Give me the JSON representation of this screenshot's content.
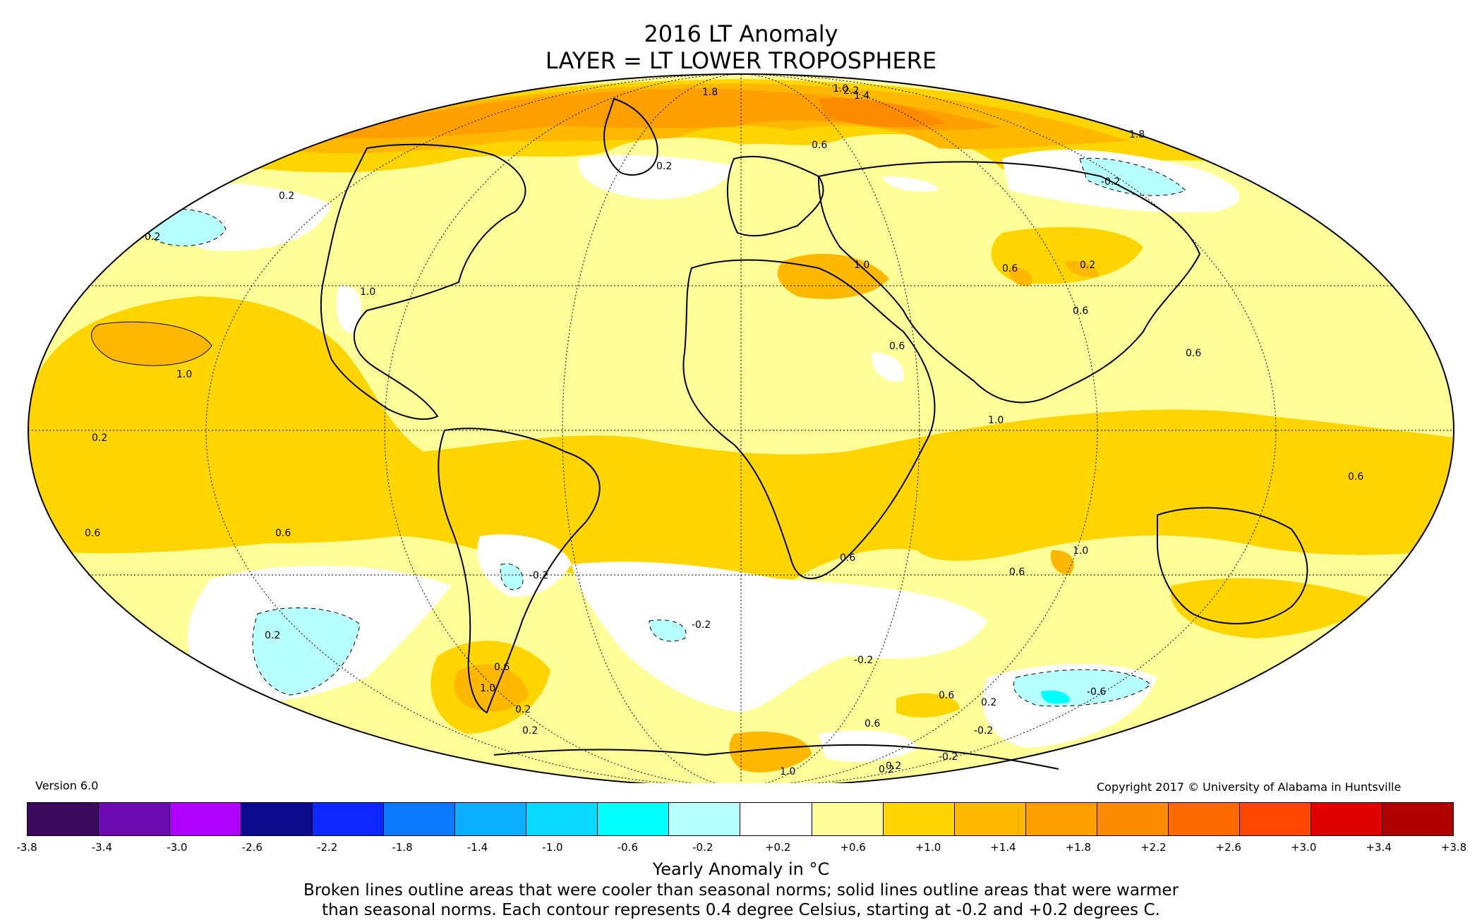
{
  "title_line1": "2016 LT Anomaly",
  "title_line2": "LAYER = LT LOWER TROPOSPHERE",
  "version": "Version 6.0",
  "copyright": "Copyright 2017 © University of Alabama in Huntsville",
  "colorbar": {
    "label": "Yearly Anomaly in °C",
    "ticks": [
      "-3.8",
      "-3.4",
      "-3.0",
      "-2.6",
      "-2.2",
      "-1.8",
      "-1.4",
      "-1.0",
      "-0.6",
      "-0.2",
      "+0.2",
      "+0.6",
      "+1.0",
      "+1.4",
      "+1.8",
      "+2.2",
      "+2.6",
      "+3.0",
      "+3.4",
      "+3.8"
    ],
    "colors": [
      "#3a0a5e",
      "#6a0ab0",
      "#b000ff",
      "#0a0a8c",
      "#0a28ff",
      "#0a78ff",
      "#0ab0ff",
      "#0ad8ff",
      "#00ffff",
      "#b8ffff",
      "#ffffff",
      "#ffff99",
      "#ffd500",
      "#ffb800",
      "#ffa000",
      "#ff8c00",
      "#ff6a00",
      "#ff4800",
      "#e00000",
      "#b00000"
    ]
  },
  "contour_labels": [
    "0.2",
    "-0.2",
    "0.6",
    "1.0",
    "1.4",
    "1.8",
    "2.2",
    "0.2",
    "-0.2",
    "1.8",
    "1.0",
    "1.0",
    "0.6",
    "0.2",
    "0.6",
    "1.0",
    "0.6",
    "0.6",
    "0.6",
    "0.2",
    "-0.2",
    "-0.2",
    "0.2",
    "-0.2",
    "0.6",
    "1.0",
    "1.0",
    "0.6",
    "0.2",
    "0.6",
    "0.2",
    "-0.2",
    "0.6",
    "0.6",
    "0.2",
    "1.0",
    "-0.6",
    "0.2",
    "-0.2",
    "0.2",
    "0.6",
    "0.6",
    "1.0"
  ],
  "note_line1": "Broken lines outline areas that were cooler than seasonal norms; solid lines outline areas that were warmer",
  "note_line2": "than seasonal norms. Each contour represents 0.4 degree Celsius, starting at -0.2 and +0.2 degrees C."
}
